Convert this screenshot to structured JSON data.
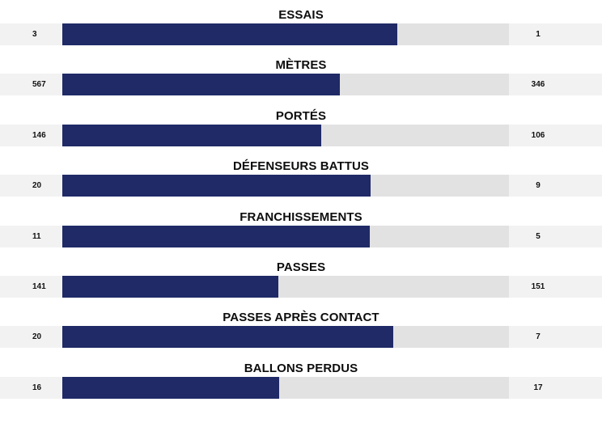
{
  "colors": {
    "home_bar": "#1f2a67",
    "track": "#e2e2e2",
    "row_bg": "#f2f2f2"
  },
  "stats": [
    {
      "label": "ESSAIS",
      "home": "3",
      "away": "1",
      "share": 0.75
    },
    {
      "label": "MÈTRES",
      "home": "567",
      "away": "346",
      "share": 0.621
    },
    {
      "label": "PORTÉS",
      "home": "146",
      "away": "106",
      "share": 0.579
    },
    {
      "label": "DÉFENSEURS BATTUS",
      "home": "20",
      "away": "9",
      "share": 0.69
    },
    {
      "label": "FRANCHISSEMENTS",
      "home": "11",
      "away": "5",
      "share": 0.6875
    },
    {
      "label": "PASSES",
      "home": "141",
      "away": "151",
      "share": 0.483
    },
    {
      "label": "PASSES APRÈS CONTACT",
      "home": "20",
      "away": "7",
      "share": 0.741
    },
    {
      "label": "BALLONS PERDUS",
      "home": "16",
      "away": "17",
      "share": 0.485
    }
  ]
}
